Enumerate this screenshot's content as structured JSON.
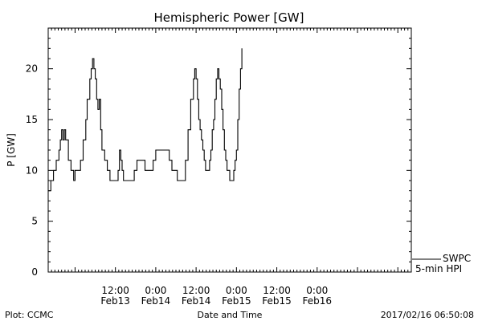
{
  "chart_data": {
    "type": "line",
    "title": "Hemispheric Power [GW]",
    "ylabel": "P [GW]",
    "xlabel": "Date and Time",
    "ylim": [
      0,
      24
    ],
    "xlim": [
      -0.333,
      4.167
    ],
    "grid": false,
    "legend": "right, below plot",
    "y_ticks": [
      0,
      5,
      10,
      15,
      20
    ],
    "x_ticks": [
      {
        "x": 0.5,
        "time": "12:00",
        "date": "Feb13"
      },
      {
        "x": 1.0,
        "time": "0:00",
        "date": "Feb14"
      },
      {
        "x": 1.5,
        "time": "12:00",
        "date": "Feb14"
      },
      {
        "x": 2.0,
        "time": "0:00",
        "date": "Feb15"
      },
      {
        "x": 2.5,
        "time": "12:00",
        "date": "Feb15"
      },
      {
        "x": 3.0,
        "time": "0:00",
        "date": "Feb16"
      }
    ],
    "series": [
      {
        "name": "5-min HPI",
        "color": "#000000",
        "points": [
          [
            -0.333,
            8
          ],
          [
            -0.3,
            9
          ],
          [
            -0.267,
            10
          ],
          [
            -0.233,
            11
          ],
          [
            -0.2,
            12
          ],
          [
            -0.183,
            13
          ],
          [
            -0.167,
            14
          ],
          [
            -0.15,
            13
          ],
          [
            -0.133,
            14
          ],
          [
            -0.117,
            13
          ],
          [
            -0.083,
            11
          ],
          [
            -0.05,
            10
          ],
          [
            -0.017,
            9
          ],
          [
            0.0,
            10
          ],
          [
            0.033,
            10
          ],
          [
            0.067,
            11
          ],
          [
            0.1,
            13
          ],
          [
            0.133,
            15
          ],
          [
            0.15,
            17
          ],
          [
            0.183,
            19
          ],
          [
            0.2,
            20
          ],
          [
            0.217,
            21
          ],
          [
            0.233,
            20
          ],
          [
            0.25,
            19
          ],
          [
            0.267,
            17
          ],
          [
            0.283,
            16
          ],
          [
            0.3,
            17
          ],
          [
            0.317,
            14
          ],
          [
            0.333,
            12
          ],
          [
            0.367,
            11
          ],
          [
            0.4,
            10
          ],
          [
            0.433,
            9
          ],
          [
            0.467,
            9
          ],
          [
            0.5,
            9
          ],
          [
            0.533,
            10
          ],
          [
            0.55,
            12
          ],
          [
            0.567,
            11
          ],
          [
            0.583,
            10
          ],
          [
            0.6,
            9
          ],
          [
            0.633,
            9
          ],
          [
            0.667,
            9
          ],
          [
            0.7,
            9
          ],
          [
            0.733,
            10
          ],
          [
            0.767,
            11
          ],
          [
            0.8,
            11
          ],
          [
            0.833,
            11
          ],
          [
            0.867,
            10
          ],
          [
            0.9,
            10
          ],
          [
            0.933,
            10
          ],
          [
            0.967,
            11
          ],
          [
            1.0,
            12
          ],
          [
            1.033,
            12
          ],
          [
            1.067,
            12
          ],
          [
            1.1,
            12
          ],
          [
            1.133,
            12
          ],
          [
            1.167,
            11
          ],
          [
            1.2,
            10
          ],
          [
            1.233,
            10
          ],
          [
            1.267,
            9
          ],
          [
            1.3,
            9
          ],
          [
            1.333,
            9
          ],
          [
            1.367,
            11
          ],
          [
            1.4,
            14
          ],
          [
            1.433,
            17
          ],
          [
            1.467,
            19
          ],
          [
            1.483,
            20
          ],
          [
            1.5,
            19
          ],
          [
            1.517,
            17
          ],
          [
            1.533,
            15
          ],
          [
            1.55,
            14
          ],
          [
            1.567,
            13
          ],
          [
            1.583,
            12
          ],
          [
            1.6,
            11
          ],
          [
            1.617,
            10
          ],
          [
            1.633,
            10
          ],
          [
            1.65,
            10
          ],
          [
            1.667,
            11
          ],
          [
            1.683,
            12
          ],
          [
            1.7,
            14
          ],
          [
            1.717,
            15
          ],
          [
            1.733,
            17
          ],
          [
            1.75,
            19
          ],
          [
            1.767,
            20
          ],
          [
            1.783,
            19
          ],
          [
            1.8,
            18
          ],
          [
            1.817,
            16
          ],
          [
            1.833,
            14
          ],
          [
            1.85,
            12
          ],
          [
            1.867,
            11
          ],
          [
            1.883,
            10
          ],
          [
            1.9,
            10
          ],
          [
            1.917,
            9
          ],
          [
            1.933,
            9
          ],
          [
            1.95,
            9
          ],
          [
            1.967,
            10
          ],
          [
            1.983,
            11
          ],
          [
            2.0,
            12
          ],
          [
            2.017,
            15
          ],
          [
            2.033,
            18
          ],
          [
            2.05,
            20
          ],
          [
            2.067,
            22
          ]
        ]
      }
    ],
    "annotations": [
      "SWPC",
      "5-min HPI"
    ],
    "footer": {
      "left": "Plot: CCMC",
      "right": "2017/02/16 06:50:08"
    }
  },
  "colors": {
    "line": "#000000",
    "background": "#ffffff"
  }
}
